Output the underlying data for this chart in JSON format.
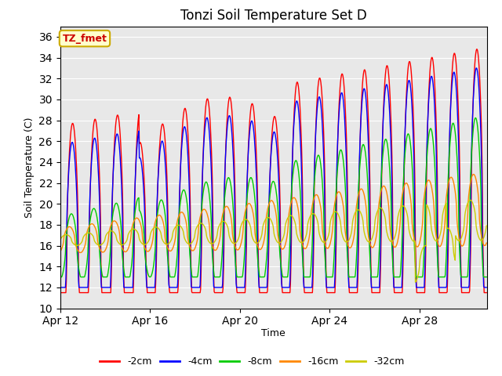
{
  "title": "Tonzi Soil Temperature Set D",
  "xlabel": "Time",
  "ylabel": "Soil Temperature (C)",
  "ylim": [
    10,
    37
  ],
  "yticks": [
    10,
    12,
    14,
    16,
    18,
    20,
    22,
    24,
    26,
    28,
    30,
    32,
    34,
    36
  ],
  "annotation_text": "TZ_fmet",
  "annotation_bg": "#ffffcc",
  "annotation_border": "#ccaa00",
  "annotation_text_color": "#cc0000",
  "series_colors": [
    "#ff0000",
    "#0000ff",
    "#00cc00",
    "#ff8800",
    "#cccc00"
  ],
  "series_labels": [
    "-2cm",
    "-4cm",
    "-8cm",
    "-16cm",
    "-32cm"
  ],
  "n_days": 19,
  "x_tick_labels": [
    "Apr 12",
    "Apr 16",
    "Apr 20",
    "Apr 24",
    "Apr 28"
  ],
  "x_tick_positions": [
    0,
    4,
    8,
    12,
    16
  ]
}
